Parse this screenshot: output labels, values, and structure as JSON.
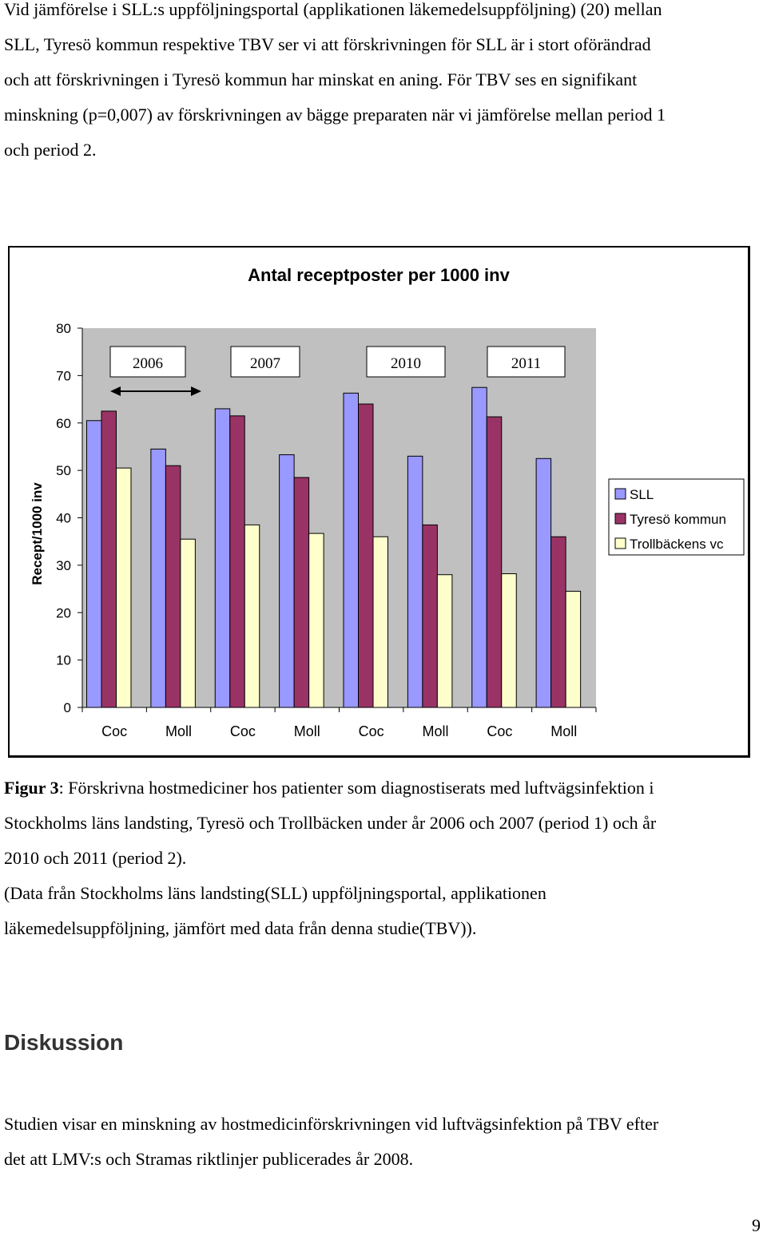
{
  "intro": {
    "lines": [
      "Vid jämförelse i SLL:s uppföljningsportal (applikationen läkemedelsuppföljning) (20) mellan",
      "SLL, Tyresö kommun respektive TBV ser vi att förskrivningen för SLL är i stort oförändrad",
      "och att förskrivningen i Tyresö kommun har minskat en aning. För TBV ses en signifikant",
      "minskning (p=0,007) av förskrivningen av bägge preparaten när vi jämförelse mellan period 1",
      "och period 2."
    ]
  },
  "chart_data": {
    "type": "bar",
    "title": "Antal receptposter per 1000 inv",
    "xlabel": "",
    "ylabel": "Recept/1000 inv",
    "ylim": [
      0,
      80
    ],
    "yticks": [
      0,
      10,
      20,
      30,
      40,
      50,
      60,
      70,
      80
    ],
    "grid": false,
    "categories": [
      "Coc",
      "Moll",
      "Coc",
      "Moll",
      "Coc",
      "Moll",
      "Coc",
      "Moll"
    ],
    "series": [
      {
        "name": "SLL",
        "color": "#9999ff",
        "values": [
          60.5,
          54.5,
          63,
          53.3,
          66.3,
          53,
          67.5,
          52.5
        ]
      },
      {
        "name": "Tyresö kommun",
        "color": "#993366",
        "values": [
          62.5,
          51,
          61.5,
          48.5,
          64,
          38.5,
          61.3,
          36
        ]
      },
      {
        "name": "Trollbäckens vc",
        "color": "#ffffcc",
        "values": [
          50.5,
          35.5,
          38.5,
          36.7,
          36,
          28,
          28.2,
          24.5
        ]
      }
    ],
    "legend_position": "right",
    "annotations": {
      "year_labels": [
        "2006",
        "2007",
        "2010",
        "2011"
      ],
      "arrow": "double-headed arrow under 2006"
    }
  },
  "caption": {
    "label": "Figur 3",
    "lines": [
      ": Förskrivna hostmediciner hos patienter som diagnostiserats med luftvägsinfektion i",
      "Stockholms läns landsting, Tyresö och Trollbäcken under år 2006 och 2007 (period 1) och år",
      "2010 och 2011 (period 2).",
      "(Data från Stockholms läns landsting(SLL) uppföljningsportal, applikationen",
      "läkemedelsuppföljning, jämfört med data från denna studie(TBV))."
    ]
  },
  "heading": "Diskussion",
  "discussion": {
    "lines": [
      "Studien visar en minskning av hostmedicinförskrivningen vid luftvägsinfektion på TBV efter",
      "det att LMV:s och Stramas riktlinjer publicerades år 2008."
    ]
  },
  "page_number": "9"
}
